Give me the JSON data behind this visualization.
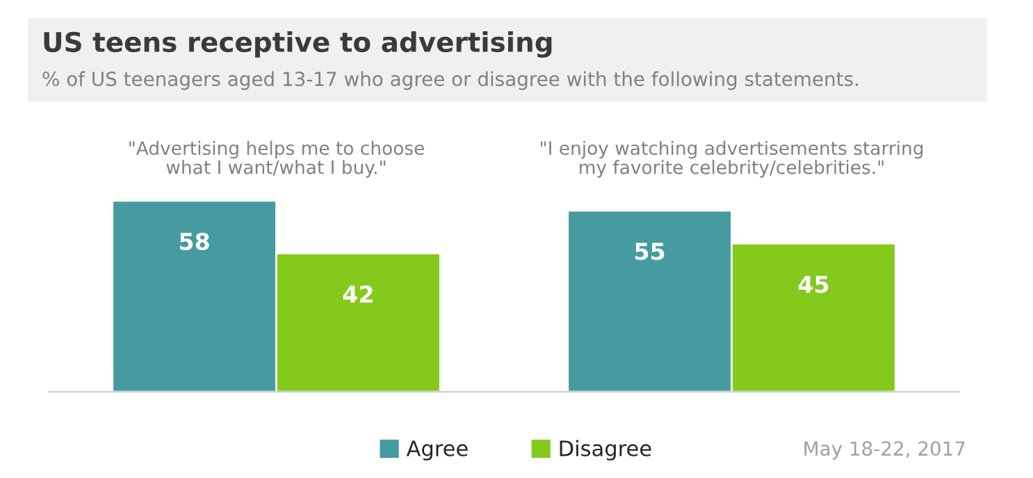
{
  "chart_data": {
    "type": "bar",
    "title": "US teens receptive to advertising",
    "subtitle": "% of US teenagers aged 13-17 who agree or disagree with the following statements.",
    "categories": [
      "\"Advertising helps me to choose\nwhat I want/what I buy.\"",
      "\"I enjoy watching advertisements starring\nmy favorite celebrity/celebrities.\""
    ],
    "series": [
      {
        "name": "Agree",
        "color": "#459ba0",
        "values": [
          58,
          55
        ]
      },
      {
        "name": "Disagree",
        "color": "#84c91c",
        "values": [
          42,
          45
        ]
      }
    ],
    "data_labels": true,
    "legend": "bottom",
    "annotations": [
      "May 18-22, 2017"
    ]
  }
}
